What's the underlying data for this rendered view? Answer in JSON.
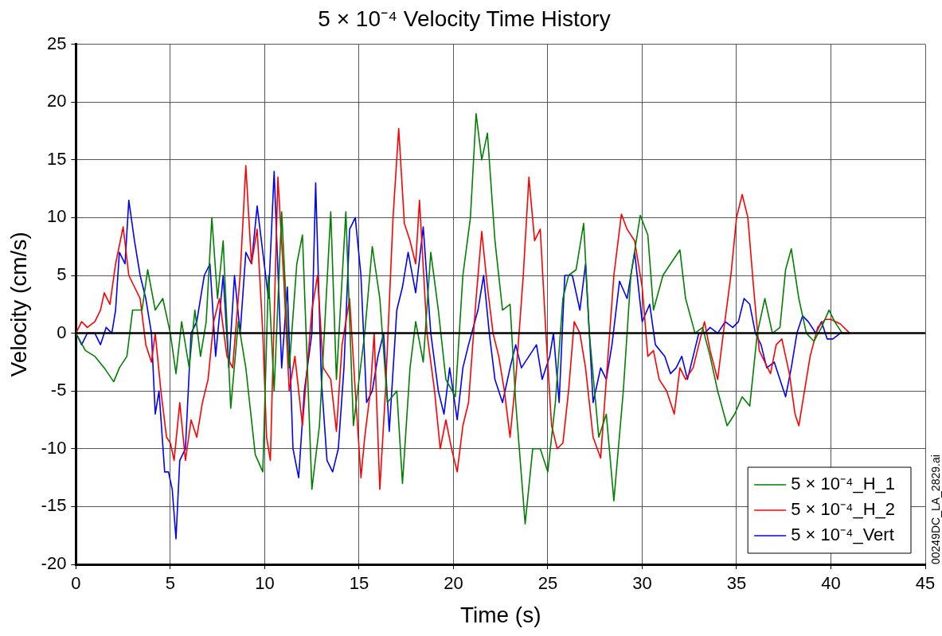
{
  "chart_data": {
    "type": "line",
    "title": "5 × 10⁻⁴ Velocity Time History",
    "xlabel": "Time (s)",
    "ylabel": "Velocity (cm/s)",
    "xlim": [
      0,
      45
    ],
    "xticks": [
      0,
      5,
      10,
      15,
      20,
      25,
      30,
      35,
      40,
      45
    ],
    "ylim": [
      -20,
      25
    ],
    "yticks": [
      -20,
      -15,
      -10,
      -5,
      0,
      5,
      10,
      15,
      20,
      25
    ],
    "grid": true,
    "legend": "bottom right",
    "marker": "none",
    "line_style": "solid",
    "ref_lines": [
      {
        "axis": "y",
        "value": 0,
        "color": "#000000"
      }
    ],
    "annotations": [
      "00249DC_LA_2829.ai"
    ],
    "series": [
      {
        "name": "5 × 10⁻⁴_H_1",
        "color": "#008000",
        "x": [
          0,
          0.5,
          1,
          1.5,
          2,
          2.3,
          2.7,
          3,
          3.5,
          3.8,
          4.2,
          4.6,
          5,
          5.3,
          5.6,
          6,
          6.3,
          6.6,
          6.9,
          7.2,
          7.5,
          7.8,
          8.2,
          8.6,
          9,
          9.5,
          9.9,
          10.2,
          10.5,
          10.9,
          11.3,
          11.7,
          12,
          12.5,
          12.9,
          13.5,
          13.8,
          14.3,
          14.7,
          15.3,
          15.7,
          16.1,
          16.5,
          17,
          17.3,
          17.7,
          18,
          18.4,
          18.8,
          19.2,
          19.6,
          20.1,
          20.5,
          20.9,
          21.2,
          21.5,
          21.8,
          22.2,
          22.6,
          23,
          23.3,
          23.8,
          24.2,
          24.6,
          25,
          25.4,
          25.8,
          26.1,
          26.5,
          26.9,
          27.2,
          27.7,
          28.1,
          28.5,
          29,
          29.4,
          29.9,
          30.3,
          30.6,
          31.1,
          31.5,
          32,
          32.3,
          32.8,
          33.2,
          33.6,
          34,
          34.5,
          34.9,
          35.3,
          35.7,
          36.1,
          36.5,
          36.9,
          37.3,
          37.6,
          37.9,
          38.3,
          38.7,
          39.1,
          39.5,
          39.9,
          40.2,
          40.6,
          41
        ],
        "values": [
          0,
          -1.5,
          -2,
          -3,
          -4.2,
          -3,
          -2,
          2,
          2,
          5.5,
          2,
          3,
          0,
          -3.5,
          1,
          -3,
          2,
          -2,
          1,
          10,
          3,
          8,
          -6.5,
          1,
          -3,
          -10.5,
          -12,
          5,
          -5,
          10.5,
          -3,
          6,
          8.5,
          -13.5,
          -8,
          10.5,
          -4,
          10.5,
          -8,
          0,
          7.5,
          3,
          -6,
          -5,
          -13,
          -3,
          1,
          -2.5,
          7,
          2,
          -4,
          -5.5,
          5,
          10,
          19,
          15,
          17.3,
          8,
          2,
          2.5,
          -6,
          -16.5,
          -10,
          -10,
          -12,
          -6,
          3,
          5,
          5.5,
          9.5,
          0,
          -9,
          -7,
          -14.5,
          -5,
          5,
          10.2,
          8.5,
          2,
          5,
          6,
          7.2,
          3,
          0,
          0.5,
          -2,
          -5,
          -8,
          -7,
          -5.5,
          -6.3,
          0,
          3,
          0,
          0.5,
          5.5,
          7.3,
          3,
          0,
          -0.7,
          0.5,
          2,
          1,
          0,
          0
        ]
      },
      {
        "name": "5 × 10⁻⁴_H_2",
        "color": "#ff0000",
        "x": [
          0,
          0.3,
          0.6,
          1,
          1.3,
          1.5,
          1.8,
          2.1,
          2.5,
          2.8,
          3.1,
          3.4,
          3.7,
          4,
          4.2,
          4.5,
          4.8,
          5,
          5.2,
          5.5,
          5.8,
          6.1,
          6.4,
          6.7,
          7,
          7.3,
          7.6,
          8,
          8.3,
          8.7,
          9,
          9.3,
          9.6,
          9.9,
          10.1,
          10.3,
          10.7,
          11,
          11.3,
          11.6,
          12,
          12.5,
          12.8,
          13.1,
          13.5,
          13.8,
          14.1,
          14.5,
          14.8,
          15.1,
          15.3,
          15.6,
          15.8,
          16.1,
          16.4,
          16.8,
          17.1,
          17.4,
          17.7,
          18,
          18.2,
          18.6,
          19,
          19.3,
          19.6,
          19.9,
          20.2,
          20.5,
          20.8,
          21.2,
          21.5,
          21.8,
          22.1,
          22.4,
          22.7,
          23,
          23.3,
          23.7,
          24,
          24.3,
          24.6,
          24.9,
          25.2,
          25.5,
          25.8,
          26.1,
          26.4,
          26.7,
          27,
          27.4,
          27.8,
          28.1,
          28.5,
          28.9,
          29.2,
          29.6,
          30,
          30.3,
          30.6,
          30.9,
          31.3,
          31.7,
          32,
          32.3,
          32.7,
          33,
          33.3,
          33.6,
          34,
          34.3,
          34.7,
          35,
          35.3,
          35.6,
          35.9,
          36.2,
          36.5,
          36.8,
          37.1,
          37.4,
          37.8,
          38.1,
          38.3,
          38.6,
          38.9,
          39.3,
          39.7,
          40,
          40.5,
          41
        ],
        "values": [
          0,
          1,
          0.5,
          1,
          2,
          3.5,
          2.5,
          6,
          9.2,
          5,
          4,
          3,
          -1,
          -2.5,
          0,
          -5,
          -9,
          -9.5,
          -11,
          -6,
          -11,
          -7.5,
          -9,
          -6,
          -4,
          1,
          3,
          -2,
          -3,
          5,
          14.5,
          6,
          9,
          0,
          -9,
          -11,
          13.5,
          5,
          -5,
          -2,
          -8,
          2,
          5,
          -3,
          -4,
          -8.5,
          -1,
          3,
          -5,
          -12.5,
          -9,
          -5,
          0,
          -13.5,
          -5,
          10,
          17.7,
          9.5,
          8,
          6,
          11.5,
          0,
          -5,
          -10,
          -7.5,
          -10,
          -12,
          -8,
          -6,
          3,
          8.8,
          4,
          0,
          -2,
          -5,
          -9,
          -4,
          5,
          13.5,
          8,
          9,
          0,
          -8,
          -10,
          -9.5,
          -5,
          1,
          0,
          -3,
          -9,
          -10.8,
          -4,
          5,
          10.3,
          9,
          8,
          4,
          -2,
          -1.5,
          -4,
          -5,
          -7,
          -3,
          -4,
          -3,
          -1,
          1,
          -1.5,
          -4,
          0,
          5,
          10,
          12,
          10,
          4,
          -1.5,
          -2.5,
          -3.5,
          -1,
          -0.5,
          -3.5,
          -7,
          -8,
          -5,
          -2,
          0.5,
          1.2,
          1.2,
          0.8,
          0
        ]
      },
      {
        "name": "5 × 10⁻⁴_Vert",
        "color": "#0000ff",
        "x": [
          0,
          0.3,
          0.6,
          1,
          1.3,
          1.6,
          1.9,
          2.1,
          2.3,
          2.6,
          2.8,
          3.1,
          3.4,
          3.7,
          4,
          4.2,
          4.4,
          4.7,
          4.9,
          5.1,
          5.3,
          5.5,
          5.8,
          6.1,
          6.4,
          6.8,
          7.1,
          7.4,
          7.8,
          8.1,
          8.4,
          8.7,
          9,
          9.3,
          9.6,
          9.9,
          10.2,
          10.5,
          10.9,
          11.2,
          11.5,
          11.8,
          12.1,
          12.5,
          12.7,
          13,
          13.3,
          13.6,
          13.9,
          14.2,
          14.5,
          14.8,
          15.1,
          15.4,
          15.7,
          16,
          16.3,
          16.6,
          17,
          17.3,
          17.6,
          18,
          18.4,
          18.8,
          19.2,
          19.5,
          19.8,
          20.2,
          20.5,
          20.8,
          21.3,
          21.6,
          21.9,
          22.2,
          22.6,
          23,
          23.3,
          23.6,
          24,
          24.4,
          24.7,
          25.1,
          25.3,
          25.6,
          25.9,
          26.3,
          26.7,
          27,
          27.4,
          27.8,
          28.1,
          28.4,
          28.8,
          29.2,
          29.6,
          30,
          30.4,
          30.7,
          31.2,
          31.5,
          31.8,
          32.1,
          32.4,
          32.7,
          33,
          33.3,
          33.6,
          34,
          34.4,
          34.8,
          35.1,
          35.4,
          35.7,
          36,
          36.3,
          36.6,
          37,
          37.3,
          37.6,
          37.9,
          38.2,
          38.5,
          38.8,
          39.2,
          39.5,
          39.8,
          40.1,
          40.5,
          41
        ],
        "values": [
          0,
          -1,
          0,
          0,
          -1,
          0.5,
          0,
          2,
          7,
          6,
          11.5,
          8,
          5,
          3,
          0,
          -7,
          -5,
          -12,
          -12,
          -13.5,
          -17.8,
          -11,
          -10,
          0,
          1,
          5,
          6,
          -2,
          5,
          -3,
          5,
          0,
          7,
          6,
          11,
          7,
          3,
          14,
          -3,
          4,
          -10,
          -12.5,
          -5,
          0,
          13,
          -4,
          -11,
          -12,
          -10,
          -3,
          9,
          10,
          5,
          -6,
          -5,
          -2,
          0,
          -8.5,
          2,
          4,
          7,
          3.5,
          9.2,
          0,
          -5,
          -7,
          -3,
          -7.5,
          -3,
          -1,
          2,
          5,
          0,
          -4,
          -6,
          -3,
          -1,
          -3,
          -2,
          -1,
          -4,
          -2,
          0,
          -6,
          5,
          5,
          2,
          6,
          -6,
          -3,
          -4,
          -1,
          4.5,
          3,
          7,
          1,
          2.5,
          -1,
          -2,
          -3.5,
          -3,
          -2,
          -4,
          -2,
          0,
          0,
          0.5,
          0,
          1,
          0.5,
          1,
          3,
          2.5,
          0,
          -1,
          -3,
          -2.5,
          -4,
          -5.5,
          -3,
          0,
          1.5,
          1,
          0,
          1,
          -0.5,
          -0.5,
          0,
          0
        ]
      }
    ]
  }
}
